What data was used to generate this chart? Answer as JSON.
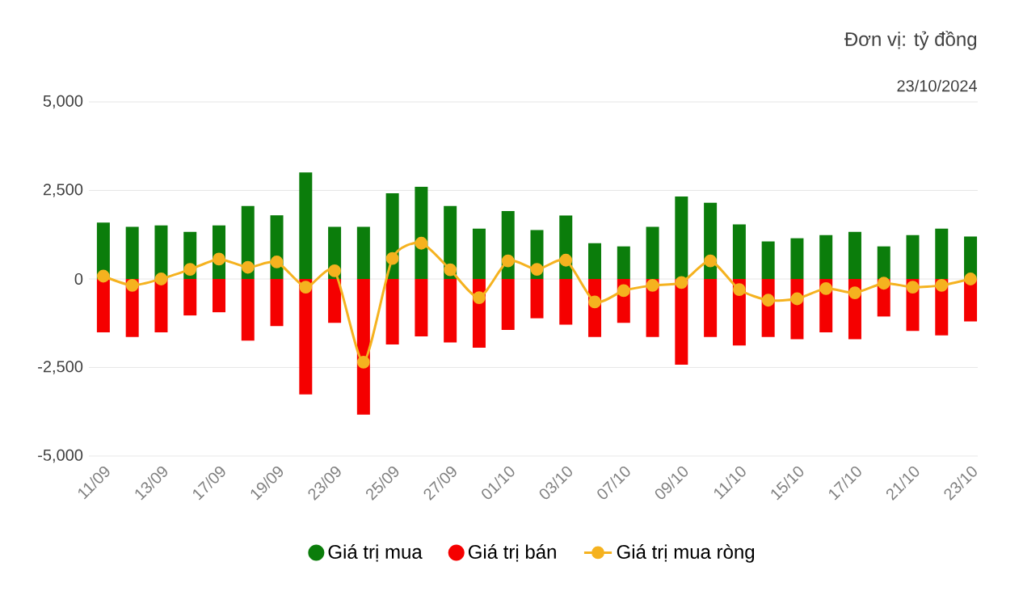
{
  "chart_data": {
    "type": "bar",
    "categories": [
      "11/09",
      null,
      "13/09",
      null,
      "17/09",
      null,
      "19/09",
      null,
      "23/09",
      null,
      "25/09",
      null,
      "27/09",
      null,
      "01/10",
      null,
      "03/10",
      null,
      "07/10",
      null,
      "09/10",
      null,
      "11/10",
      null,
      "15/10",
      null,
      "17/10",
      null,
      "21/10",
      null,
      "23/10"
    ],
    "series": [
      {
        "name": "Giá trị mua",
        "color": "#0b7d0b",
        "values": [
          1590,
          1470,
          1510,
          1330,
          1510,
          2060,
          1800,
          3010,
          1470,
          1470,
          2420,
          2600,
          2060,
          1420,
          1920,
          1380,
          1790,
          1010,
          920,
          1470,
          2330,
          2150,
          1540,
          1060,
          1150,
          1240,
          1330,
          920,
          1240,
          1420,
          1200
        ]
      },
      {
        "name": "Giá trị bán",
        "color": "#f50000",
        "values": [
          -1510,
          -1640,
          -1510,
          -1030,
          -940,
          -1740,
          -1330,
          -3260,
          -1240,
          -3830,
          -1850,
          -1620,
          -1790,
          -1940,
          -1440,
          -1110,
          -1290,
          -1640,
          -1240,
          -1640,
          -2420,
          -1640,
          -1880,
          -1640,
          -1700,
          -1510,
          -1700,
          -1060,
          -1470,
          -1590,
          -1200
        ]
      },
      {
        "name": "Giá trị mua ròng",
        "type": "line",
        "color": "#f5b21f",
        "marker": "circle",
        "values": [
          80,
          -180,
          0,
          270,
          560,
          330,
          480,
          -230,
          230,
          -2350,
          580,
          1010,
          260,
          -530,
          510,
          270,
          530,
          -650,
          -330,
          -180,
          -100,
          510,
          -300,
          -600,
          -560,
          -270,
          -390,
          -120,
          -230,
          -180,
          0
        ]
      }
    ],
    "stacked": true,
    "ylim": [
      -5000,
      5000
    ],
    "yticks": [
      {
        "value": -5000,
        "label": "-5,000"
      },
      {
        "value": -2500,
        "label": "-2,500"
      },
      0,
      {
        "value": 2500,
        "label": "2,500"
      },
      {
        "value": 5000,
        "label": "5,000"
      }
    ],
    "grid": "y",
    "legend": "bottom",
    "annotations": [
      "Đơn vị: tỷ đồng",
      "23/10/2024"
    ]
  }
}
